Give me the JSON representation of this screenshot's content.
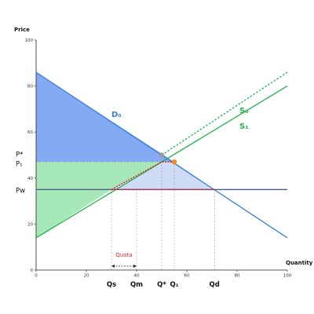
{
  "chart_data": {
    "type": "line",
    "title": "",
    "xlabel": "Quantity",
    "ylabel": "Price",
    "xlim": [
      0,
      100
    ],
    "ylim": [
      0,
      100
    ],
    "x_ticks": [
      0,
      20,
      40,
      60,
      80,
      100
    ],
    "y_ticks": [
      0,
      20,
      40,
      60,
      80,
      100
    ],
    "series": [
      {
        "name": "D₀",
        "color": "#3a7fdc",
        "style": "solid",
        "points": [
          [
            0,
            86
          ],
          [
            100,
            14
          ]
        ]
      },
      {
        "name": "S₀",
        "color": "#22b14c",
        "style": "dotted",
        "points": [
          [
            50,
            50
          ],
          [
            100,
            86
          ]
        ]
      },
      {
        "name": "S₁",
        "color": "#22b14c",
        "style": "solid",
        "points": [
          [
            0,
            14
          ],
          [
            100,
            80
          ]
        ]
      },
      {
        "name": "Pw",
        "color": "#4a5a8a",
        "style": "solid",
        "points": [
          [
            0,
            35
          ],
          [
            100,
            35
          ]
        ]
      }
    ],
    "price_levels": {
      "P*": 50,
      "P₁": 47,
      "Pw": 35
    },
    "quantity_levels": {
      "Qs": 30,
      "Qm": 40,
      "Q*": 50,
      "Q₁": 55,
      "Qd": 71
    },
    "equilibria": [
      {
        "x": 50,
        "y": 50,
        "color": "#9a9a9a"
      },
      {
        "x": 55,
        "y": 47,
        "color": "#f08a1c"
      }
    ],
    "shaded_regions": [
      {
        "name": "consumer-surplus",
        "color": "#5b8def",
        "points": [
          [
            0,
            86
          ],
          [
            0,
            47
          ],
          [
            55,
            47
          ]
        ]
      },
      {
        "name": "producer-surplus",
        "color": "#5fd67f",
        "points": [
          [
            0,
            14
          ],
          [
            0,
            47
          ],
          [
            50,
            47
          ],
          [
            30,
            35
          ]
        ]
      },
      {
        "name": "quota-rent",
        "color": "#b9cdf5",
        "points": [
          [
            30,
            35
          ],
          [
            50,
            47
          ],
          [
            55,
            47
          ],
          [
            71,
            35
          ]
        ]
      }
    ],
    "annotations": [
      {
        "text": "Quota",
        "color": "#d62728"
      }
    ],
    "labels": {
      "D₀": "D₀",
      "S₀": "S₀",
      "S₁": "S₁",
      "P*": "P*",
      "P₁": "P₁",
      "Pw": "Pw",
      "Qs": "Qs",
      "Qm": "Qm",
      "Q*": "Q*",
      "Q₁": "Q₁",
      "Qd": "Qd"
    },
    "grid": false,
    "legend": "none"
  }
}
